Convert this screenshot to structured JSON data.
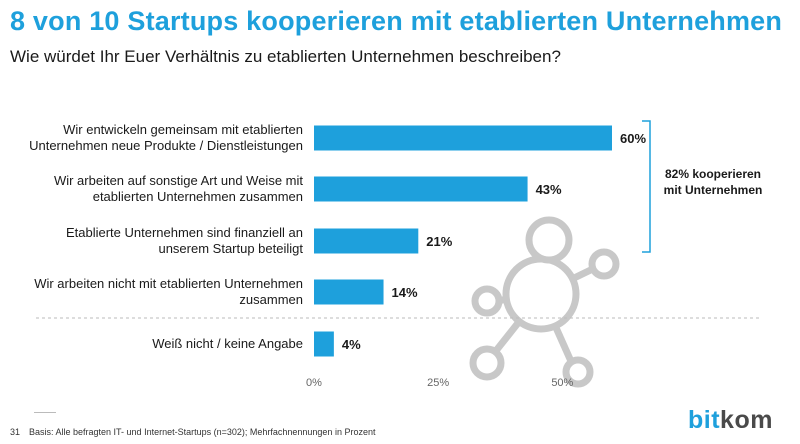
{
  "header": {
    "title": "8 von 10 Startups kooperieren mit etablierten Unternehmen",
    "subtitle": "Wie würdet Ihr Euer Verhältnis zu etablierten Unternehmen beschreiben?"
  },
  "chart_data": {
    "type": "bar",
    "orientation": "horizontal",
    "title": "8 von 10 Startups kooperieren mit etablierten Unternehmen",
    "subtitle": "Wie würdet Ihr Euer Verhältnis zu etablierten Unternehmen beschreiben?",
    "categories": [
      [
        "Wir entwickeln gemeinsam mit etablierten",
        "Unternehmen neue Produkte / Dienstleistungen"
      ],
      [
        "Wir arbeiten auf sonstige Art und Weise mit",
        "etablierten Unternehmen zusammen"
      ],
      [
        "Etablierte Unternehmen sind finanziell an",
        "unserem Startup beteiligt"
      ],
      [
        "Wir arbeiten nicht mit etablierten Unternehmen",
        "zusammen"
      ],
      [
        "Weiß nicht / keine Angabe"
      ]
    ],
    "values": [
      60,
      43,
      21,
      14,
      4
    ],
    "value_labels": [
      "60%",
      "43%",
      "21%",
      "14%",
      "4%"
    ],
    "xlim": [
      0,
      60
    ],
    "xticks": [
      0,
      25,
      50
    ],
    "xtick_labels": [
      "0%",
      "25%",
      "50%"
    ],
    "xlabel": "",
    "ylabel": "",
    "grid": false,
    "bar_color": "#1ea0dc",
    "bracket_annotation": [
      "82% kooperieren",
      "mit Unternehmen"
    ],
    "separator_after_index": 3
  },
  "footer": {
    "page_number": "31",
    "base_note": "Basis: Alle befragten IT- und Internet-Startups (n=302); Mehrfachnennungen in Prozent"
  },
  "logo": {
    "part1": "bit",
    "part2": "kom"
  },
  "colors": {
    "accent": "#1ea0dc",
    "icon_gray": "#c8c8c8"
  }
}
